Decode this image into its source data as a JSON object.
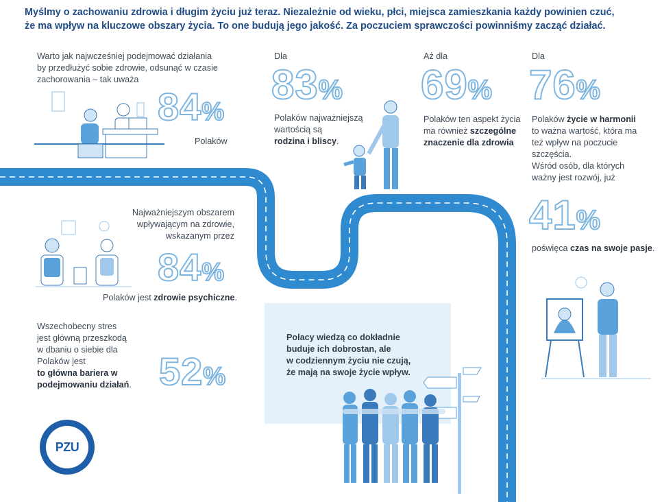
{
  "header": {
    "line1": "Myślmy o zachowaniu zdrowia i długim życiu już teraz. Niezależnie od wieku, płci, miejsca zamieszkania każdy powinien czuć,",
    "line2": "że ma wpływ na kluczowe obszary życia. To one budują jego jakość. Za poczuciem sprawczości powinniśmy zacząć działać."
  },
  "stats": {
    "s1": {
      "intro": [
        "Warto jak najwcześniej podejmować działania",
        "by przedłużyć sobie zdrowie, odsunąć w czasie",
        "zachorowania – tak uważa"
      ],
      "value": "84",
      "unit": "%",
      "caption": "Polaków"
    },
    "s2": {
      "prefix": "Dla",
      "value": "83",
      "unit": "%",
      "caption_a": "Polaków najważniejszą",
      "caption_b": "wartością są",
      "caption_bold": "rodzina i bliscy",
      "caption_end": "."
    },
    "s3": {
      "prefix": "Aż dla",
      "value": "69",
      "unit": "%",
      "caption_a": "Polaków ten aspekt życia",
      "caption_b": "ma również ",
      "caption_bold1": "szczególne",
      "caption_bold2": "znaczenie dla zdrowia"
    },
    "s4": {
      "prefix": "Dla",
      "value": "76",
      "unit": "%",
      "caption_a": "Polaków ",
      "caption_bold": "życie w harmonii",
      "caption_b": "to ważna wartość, która ma",
      "caption_c": "też wpływ na poczucie szczęścia."
    },
    "s5": {
      "intro_a": "Wśród osób, dla których",
      "intro_b": "ważny jest rozwój, już",
      "value": "41",
      "unit": "%",
      "caption_a": "poświęca ",
      "caption_bold": "czas na swoje pasje",
      "caption_end": "."
    },
    "s6": {
      "intro": [
        "Najważniejszym obszarem",
        "wpływającym na zdrowie,",
        "wskazanym przez"
      ],
      "value": "84",
      "unit": "%",
      "caption_a": "Polaków jest ",
      "caption_bold": "zdrowie psychiczne",
      "caption_end": "."
    },
    "s7": {
      "intro": [
        "Wszechobecny stres",
        "jest główną przeszkodą",
        "w dbaniu o siebie dla",
        "Polaków jest"
      ],
      "bold": [
        "to główna bariera w",
        "podejmowaniu działań"
      ],
      "bold_end": ".",
      "value": "52",
      "unit": "%"
    }
  },
  "callout": {
    "lines": [
      "Polacy wiedzą co dokładnie",
      "buduje ich dobrostan,  ale",
      "w codziennym życiu nie czują,",
      "że mają na swoje życie wpływ."
    ]
  },
  "logo": {
    "text": "PZU"
  },
  "colors": {
    "road": "#2f8ad0",
    "road_line": "#ffffff",
    "accent": "#1f4b86",
    "stroke": "#7fb6e0",
    "light": "#e4f1fb"
  },
  "icons": [
    "doctor-office-illustration",
    "parent-child-illustration",
    "therapy-session-illustration",
    "group-hug-illustration",
    "signpost-icon",
    "painter-illustration",
    "winding-road"
  ]
}
